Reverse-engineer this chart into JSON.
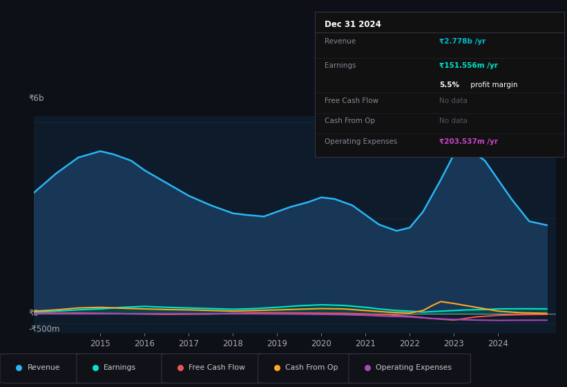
{
  "bg_color": "#0d1117",
  "chart_bg": "#0d1b2a",
  "title_box": {
    "date": "Dec 31 2024",
    "rows": [
      {
        "label": "Revenue",
        "value": "₹2.778b /yr",
        "value_color": "#00bcd4",
        "sub": null
      },
      {
        "label": "Earnings",
        "value": "₹151.556m /yr",
        "value_color": "#00e5cc",
        "sub": "5.5% profit margin"
      },
      {
        "label": "Free Cash Flow",
        "value": "No data",
        "value_color": "#555566",
        "sub": null
      },
      {
        "label": "Cash From Op",
        "value": "No data",
        "value_color": "#555566",
        "sub": null
      },
      {
        "label": "Operating Expenses",
        "value": "₹203.537m /yr",
        "value_color": "#cc44cc",
        "sub": null
      }
    ]
  },
  "ylabel_top": "₹6b",
  "ylabel_mid": "₹0",
  "ylabel_bot": "-₹500m",
  "ylim": [
    -600,
    6200
  ],
  "xlim": [
    2013.5,
    2025.3
  ],
  "x_ticks": [
    2015,
    2016,
    2017,
    2018,
    2019,
    2020,
    2021,
    2022,
    2023,
    2024
  ],
  "revenue_color": "#29b6f6",
  "revenue_fill": "#1a3a5c",
  "earnings_color": "#00e5cc",
  "earnings_fill": "#004d40",
  "fcf_color": "#ef5350",
  "cashfromop_color": "#ffa726",
  "opex_color": "#ab47bc",
  "legend": [
    {
      "label": "Revenue",
      "color": "#29b6f6"
    },
    {
      "label": "Earnings",
      "color": "#00e5cc"
    },
    {
      "label": "Free Cash Flow",
      "color": "#ef5350"
    },
    {
      "label": "Cash From Op",
      "color": "#ffa726"
    },
    {
      "label": "Operating Expenses",
      "color": "#ab47bc"
    }
  ],
  "revenue_x": [
    2013.5,
    2014.0,
    2014.5,
    2015.0,
    2015.3,
    2015.7,
    2016.0,
    2016.5,
    2017.0,
    2017.5,
    2018.0,
    2018.3,
    2018.7,
    2019.0,
    2019.3,
    2019.7,
    2020.0,
    2020.3,
    2020.7,
    2021.0,
    2021.3,
    2021.7,
    2022.0,
    2022.3,
    2022.7,
    2023.0,
    2023.3,
    2023.7,
    2024.0,
    2024.3,
    2024.7,
    2025.1
  ],
  "revenue_y": [
    3800,
    4400,
    4900,
    5100,
    5000,
    4800,
    4500,
    4100,
    3700,
    3400,
    3150,
    3100,
    3050,
    3200,
    3350,
    3500,
    3650,
    3600,
    3400,
    3100,
    2800,
    2600,
    2700,
    3200,
    4200,
    5000,
    5200,
    4800,
    4200,
    3600,
    2900,
    2778
  ],
  "earnings_x": [
    2013.5,
    2014.0,
    2014.5,
    2015.0,
    2015.5,
    2016.0,
    2016.5,
    2017.0,
    2017.5,
    2018.0,
    2018.5,
    2019.0,
    2019.5,
    2020.0,
    2020.5,
    2021.0,
    2021.3,
    2021.7,
    2022.0,
    2022.3,
    2022.7,
    2023.0,
    2023.3,
    2023.7,
    2024.0,
    2024.5,
    2025.1
  ],
  "earnings_y": [
    50,
    80,
    120,
    150,
    200,
    230,
    200,
    180,
    160,
    140,
    160,
    200,
    250,
    280,
    260,
    200,
    150,
    100,
    80,
    50,
    80,
    100,
    120,
    130,
    152,
    155,
    152
  ],
  "fcf_x": [
    2013.5,
    2014.5,
    2015.5,
    2016.5,
    2017.5,
    2018.5,
    2019.5,
    2020.5,
    2021.5,
    2022.0,
    2022.5,
    2023.0,
    2023.5,
    2024.0,
    2024.5,
    2025.1
  ],
  "fcf_y": [
    10,
    20,
    0,
    -20,
    -10,
    30,
    20,
    10,
    -30,
    -80,
    -150,
    -200,
    -100,
    -50,
    -30,
    -20
  ],
  "cashop_x": [
    2013.5,
    2014.0,
    2014.5,
    2015.0,
    2015.5,
    2016.0,
    2016.5,
    2017.0,
    2017.5,
    2018.0,
    2018.5,
    2019.0,
    2019.5,
    2020.0,
    2020.5,
    2021.0,
    2021.5,
    2022.0,
    2022.3,
    2022.5,
    2022.7,
    2023.0,
    2023.5,
    2024.0,
    2024.5,
    2025.1
  ],
  "cashop_y": [
    80,
    120,
    180,
    200,
    170,
    150,
    130,
    120,
    100,
    80,
    100,
    120,
    140,
    160,
    150,
    100,
    50,
    20,
    100,
    250,
    380,
    320,
    200,
    80,
    30,
    10
  ],
  "opex_x": [
    2013.5,
    2014.5,
    2015.5,
    2016.5,
    2017.5,
    2018.5,
    2019.5,
    2020.0,
    2020.5,
    2021.0,
    2021.5,
    2022.0,
    2022.5,
    2023.0,
    2023.5,
    2024.0,
    2024.5,
    2025.1
  ],
  "opex_y": [
    0,
    0,
    0,
    0,
    0,
    0,
    -10,
    -20,
    -30,
    -50,
    -80,
    -100,
    -150,
    -180,
    -200,
    -210,
    -205,
    -204
  ]
}
